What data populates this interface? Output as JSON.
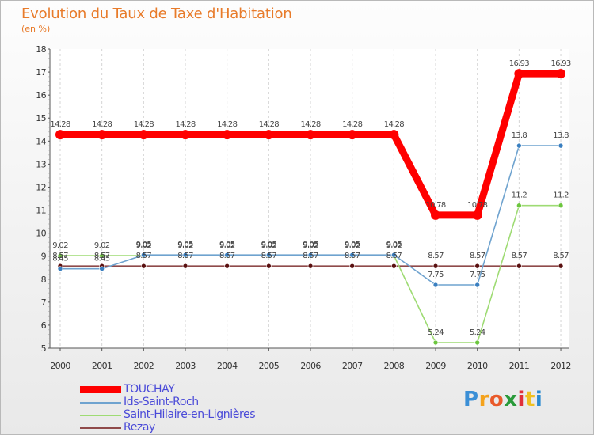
{
  "header": {
    "title": "Evolution du Taux de Taxe d'Habitation",
    "subtitle": "(en %)"
  },
  "chart_data": {
    "type": "line",
    "title": "Evolution du Taux de Taxe d'Habitation",
    "ylabel": "(en %)",
    "xlabel": "",
    "categories": [
      "2000",
      "2001",
      "2002",
      "2003",
      "2004",
      "2005",
      "2006",
      "2007",
      "2008",
      "2009",
      "2010",
      "2011",
      "2012"
    ],
    "ylim": [
      5,
      18
    ],
    "yticks": [
      5,
      6,
      7,
      8,
      9,
      10,
      11,
      12,
      13,
      14,
      15,
      16,
      17,
      18
    ],
    "grid": "vertical dashed",
    "legend_position": "bottom-left",
    "series": [
      {
        "name": "TOUCHAY",
        "color": "#ff0000",
        "width": "thick",
        "values": [
          14.28,
          14.28,
          14.28,
          14.28,
          14.28,
          14.28,
          14.28,
          14.28,
          14.28,
          10.78,
          10.78,
          16.93,
          16.93
        ],
        "labels": [
          "14.28",
          "14.28",
          "14.28",
          "14.28",
          "14.28",
          "14.28",
          "14.28",
          "14.28",
          "14.28",
          "10.78",
          "10.78",
          "16.93",
          "16.93"
        ]
      },
      {
        "name": "Ids-Saint-Roch",
        "color": "#6fa3cf",
        "marker": "#3a7fc0",
        "values": [
          8.45,
          8.45,
          9.05,
          9.05,
          9.05,
          9.05,
          9.05,
          9.05,
          9.05,
          7.75,
          7.75,
          13.8,
          13.8
        ],
        "labels": [
          "8.45",
          "8.45",
          "9.05",
          "9.05",
          "9.05",
          "9.05",
          "9.05",
          "9.05",
          "9.05",
          "7.75",
          "7.75",
          "13.8",
          "13.8"
        ]
      },
      {
        "name": "Saint-Hilaire-en-Lignières",
        "color": "#9edb73",
        "marker": "#6cc63e",
        "values": [
          9.02,
          9.02,
          9.02,
          9.02,
          9.02,
          9.02,
          9.02,
          9.02,
          9.02,
          5.24,
          5.24,
          11.2,
          11.2
        ],
        "labels": [
          "9.02",
          "9.02",
          "9.02",
          "9.02",
          "9.02",
          "9.02",
          "9.02",
          "9.02",
          "9.02",
          "5.24",
          "5.24",
          "11.2",
          "11.2"
        ]
      },
      {
        "name": "Rezay",
        "color": "#8f4a4a",
        "marker": "#5a1010",
        "values": [
          8.57,
          8.57,
          8.57,
          8.57,
          8.57,
          8.57,
          8.57,
          8.57,
          8.57,
          8.57,
          8.57,
          8.57,
          8.57
        ],
        "labels": [
          "8.57",
          "8.57",
          "8.57",
          "8.57",
          "8.57",
          "8.57",
          "8.57",
          "8.57",
          "8.57",
          "8.57",
          "8.57",
          "8.57",
          "8.57"
        ]
      }
    ]
  },
  "legend": {
    "items": [
      {
        "label": "TOUCHAY",
        "color": "#ff0000"
      },
      {
        "label": "Ids-Saint-Roch",
        "color": "#6fa3cf"
      },
      {
        "label": "Saint-Hilaire-en-Lignières",
        "color": "#9edb73"
      },
      {
        "label": "Rezay",
        "color": "#8f4a4a"
      }
    ]
  },
  "logo": {
    "letters": [
      "P",
      "r",
      "o",
      "x",
      "i",
      "t",
      "i"
    ],
    "colors": [
      "#3b8fd6",
      "#f4a21c",
      "#e95a2a",
      "#2a9a3a",
      "#e0303a",
      "#f0c020",
      "#2a8ad0"
    ]
  }
}
